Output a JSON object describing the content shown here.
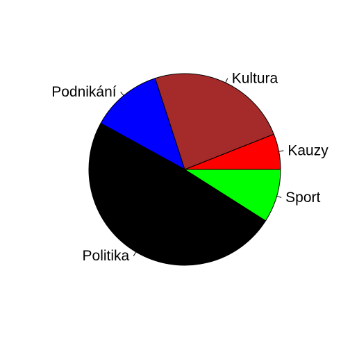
{
  "chart_data": {
    "type": "pie",
    "title": "",
    "direction": "counterclockwise",
    "start_angle_deg": 0,
    "slices": [
      {
        "label": "Kauzy",
        "value": 6,
        "color": "#FF0000"
      },
      {
        "label": "Kultura",
        "value": 24,
        "color": "#A52A2A"
      },
      {
        "label": "Podnikání",
        "value": 12,
        "color": "#0000FF"
      },
      {
        "label": "Politika",
        "value": 49,
        "color": "#000000"
      },
      {
        "label": "Sport",
        "value": 9,
        "color": "#00FF00"
      }
    ]
  }
}
